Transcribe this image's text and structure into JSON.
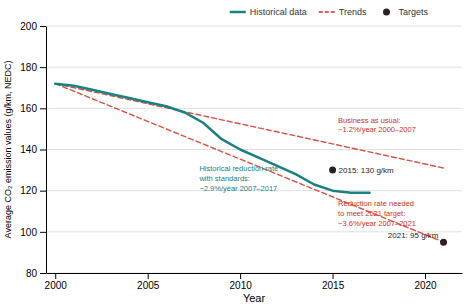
{
  "chart_data": {
    "type": "line",
    "xlabel": "Year",
    "ylabel": "Average CO₂ emission values (g/km, NEDC)",
    "xlim": [
      1999.5,
      2022
    ],
    "ylim": [
      80,
      200
    ],
    "xticks": [
      2000,
      2005,
      2010,
      2015,
      2020
    ],
    "yticks": [
      80,
      100,
      120,
      140,
      160,
      180,
      200
    ],
    "grid": true,
    "legend": "upper center",
    "data_labels": true,
    "series": [
      {
        "name": "Historical data",
        "type": "line",
        "line_style": "solid",
        "color": "#1a8080",
        "x": [
          2000,
          2001,
          2002,
          2003,
          2004,
          2005,
          2006,
          2007,
          2008,
          2009,
          2010,
          2011,
          2012,
          2013,
          2014,
          2015,
          2016,
          2017
        ],
        "values": [
          172,
          171,
          169,
          167,
          165,
          163,
          161,
          158,
          153,
          145,
          140,
          136,
          132,
          128,
          123,
          120,
          119,
          119
        ]
      },
      {
        "name": "Trends",
        "type": "line",
        "line_style": "dashed",
        "color": "#cc3322",
        "x": [
          2000,
          2021
        ],
        "values": [
          172,
          131
        ]
      },
      {
        "name": "Trends",
        "type": "line",
        "line_style": "dashed",
        "color": "#cc3322",
        "x": [
          2000,
          2021
        ],
        "values": [
          172,
          95
        ]
      },
      {
        "name": "Targets",
        "type": "scatter",
        "marker": "circle",
        "color": "#2d2020",
        "x": [
          2015,
          2021
        ],
        "values": [
          130,
          95
        ],
        "value_labels": [
          "2015: 130 g/km",
          "2021: 95 g/km"
        ]
      }
    ],
    "annotations": [
      {
        "text": "Business as usual:\n−1.2%/year 2000–2007",
        "x": 2015.3,
        "y": 152,
        "color": "#cc3322"
      },
      {
        "text": "Reduction rate needed\nto meet 2021 target:\n−3.6%/year 2007–2021",
        "x": 2015.3,
        "y": 109,
        "color": "#cc3322"
      },
      {
        "text": "Historical reduction rate\nwith standards:\n−2.9%/year 2007–2017",
        "x": 2007.8,
        "y": 126,
        "color": "#1a8080"
      }
    ]
  }
}
